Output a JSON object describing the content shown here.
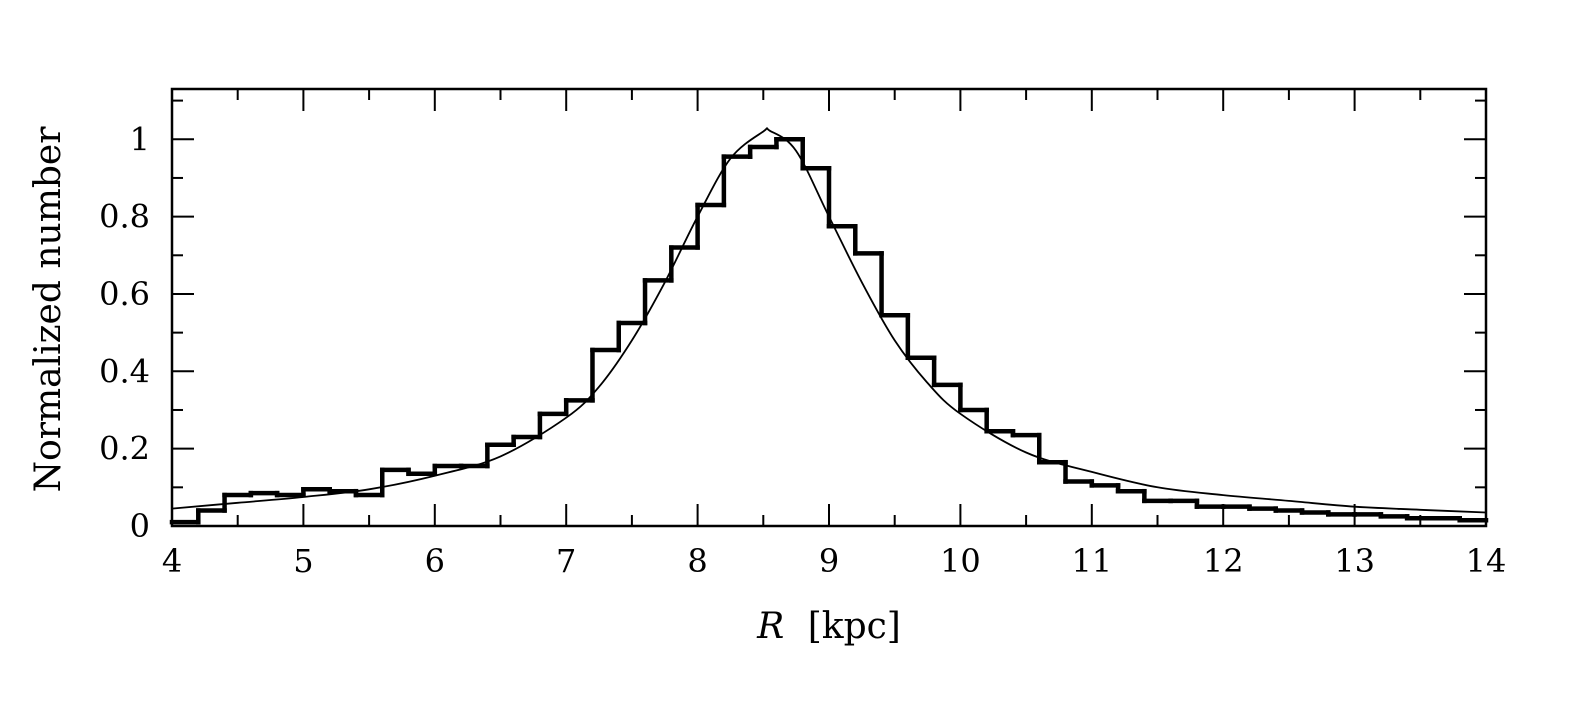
{
  "chart_data": {
    "type": "histogram",
    "xlabel_var": "R",
    "xlabel_unit": "[kpc]",
    "ylabel": "Normalized number",
    "xlim": [
      4,
      14
    ],
    "ylim": [
      0,
      1.13
    ],
    "x_ticks_major": [
      4,
      5,
      6,
      7,
      8,
      9,
      10,
      11,
      12,
      13,
      14
    ],
    "x_tick_labels": [
      "4",
      "5",
      "6",
      "7",
      "8",
      "9",
      "10",
      "11",
      "12",
      "13",
      "14"
    ],
    "y_ticks_major": [
      0,
      0.2,
      0.4,
      0.6,
      0.8,
      1
    ],
    "y_tick_labels": [
      "0",
      "0.2",
      "0.4",
      "0.6",
      "0.8",
      "1"
    ],
    "x_minor_step": 0.5,
    "y_minor_step": 0.1,
    "grid": false,
    "histogram": {
      "bin_start": 4.0,
      "bin_width": 0.2,
      "values": [
        0.01,
        0.04,
        0.08,
        0.085,
        0.08,
        0.095,
        0.09,
        0.08,
        0.145,
        0.135,
        0.155,
        0.155,
        0.21,
        0.23,
        0.29,
        0.325,
        0.455,
        0.525,
        0.635,
        0.72,
        0.83,
        0.955,
        0.98,
        1.0,
        0.925,
        0.775,
        0.705,
        0.545,
        0.435,
        0.365,
        0.3,
        0.245,
        0.235,
        0.165,
        0.115,
        0.105,
        0.09,
        0.065,
        0.065,
        0.05,
        0.05,
        0.045,
        0.04,
        0.035,
        0.03,
        0.03,
        0.025,
        0.02,
        0.02,
        0.015
      ]
    },
    "fit_curve": {
      "x": [
        4.0,
        4.5,
        5.0,
        5.5,
        6.0,
        6.5,
        7.0,
        7.25,
        7.5,
        7.75,
        8.0,
        8.25,
        8.5,
        8.55,
        8.75,
        9.0,
        9.25,
        9.5,
        9.75,
        10.0,
        10.5,
        11.0,
        11.5,
        12.0,
        12.5,
        13.0,
        13.5,
        14.0
      ],
      "y": [
        0.045,
        0.06,
        0.075,
        0.095,
        0.13,
        0.18,
        0.28,
        0.36,
        0.48,
        0.63,
        0.8,
        0.95,
        1.02,
        1.022,
        0.97,
        0.8,
        0.63,
        0.48,
        0.37,
        0.29,
        0.19,
        0.14,
        0.1,
        0.08,
        0.065,
        0.05,
        0.042,
        0.035
      ]
    }
  }
}
